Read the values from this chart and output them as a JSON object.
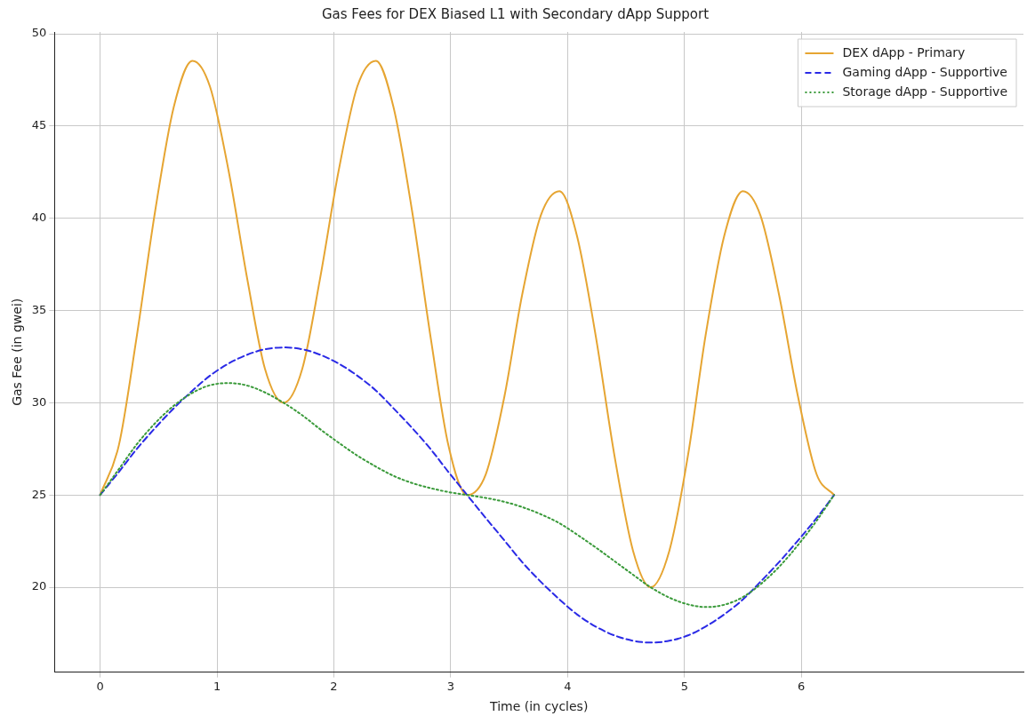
{
  "chart_data": {
    "type": "line",
    "title": "Gas Fees for DEX Biased L1 with Secondary dApp Support",
    "xlabel": "Time (in cycles)",
    "ylabel": "Gas Fee (in gwei)",
    "x": [
      0,
      0.16,
      0.31,
      0.47,
      0.63,
      0.79,
      0.94,
      1.1,
      1.26,
      1.41,
      1.57,
      1.73,
      1.88,
      2.04,
      2.2,
      2.36,
      2.51,
      2.67,
      2.83,
      2.98,
      3.14,
      3.3,
      3.46,
      3.61,
      3.77,
      3.93,
      4.08,
      4.24,
      4.4,
      4.56,
      4.71,
      4.87,
      5.03,
      5.18,
      5.34,
      5.5,
      5.65,
      5.81,
      5.97,
      6.13,
      6.28
    ],
    "series": [
      {
        "name": "DEX dApp - Primary",
        "color": "#e6a532",
        "line_style": "solid",
        "values": [
          25,
          27.69,
          33.46,
          40.36,
          46.03,
          48.54,
          47.14,
          42.55,
          36.67,
          31.85,
          30,
          31.85,
          36.67,
          42.55,
          47.14,
          48.54,
          46.03,
          40.36,
          33.46,
          27.69,
          25,
          26.13,
          30.37,
          35.82,
          40.15,
          41.47,
          39.05,
          33.64,
          27.16,
          21.97,
          20,
          21.97,
          27.16,
          33.64,
          39.05,
          41.47,
          40.15,
          35.82,
          30.37,
          26.13,
          25
        ]
      },
      {
        "name": "Gaming dApp - Supportive",
        "color": "#2a2ae6",
        "line_style": "dashed",
        "values": [
          25,
          26.25,
          27.47,
          28.63,
          29.7,
          30.66,
          31.47,
          32.13,
          32.61,
          32.9,
          33,
          32.9,
          32.61,
          32.13,
          31.47,
          30.66,
          29.7,
          28.63,
          27.47,
          26.25,
          25,
          23.75,
          22.53,
          21.37,
          20.3,
          19.34,
          18.53,
          17.87,
          17.39,
          17.1,
          17,
          17.1,
          17.39,
          17.87,
          18.53,
          19.34,
          20.3,
          21.37,
          22.53,
          23.75,
          25
        ]
      },
      {
        "name": "Storage dApp - Supportive",
        "color": "#3a9a3a",
        "line_style": "dotted",
        "values": [
          25,
          26.4,
          27.72,
          28.89,
          29.84,
          30.54,
          30.95,
          31.07,
          30.93,
          30.56,
          30,
          29.32,
          28.58,
          27.84,
          27.14,
          26.54,
          26.04,
          25.65,
          25.37,
          25.16,
          25,
          24.84,
          24.63,
          24.35,
          23.96,
          23.47,
          22.86,
          22.16,
          21.42,
          20.68,
          20,
          19.44,
          19.07,
          18.93,
          19.05,
          19.47,
          20.16,
          21.11,
          22.28,
          23.6,
          25
        ]
      }
    ],
    "xlim": [
      -0.39,
      7.9
    ],
    "xticks": [
      0,
      1,
      2,
      3,
      4,
      5,
      6
    ],
    "ylim": [
      15.4,
      50.1
    ],
    "yticks": [
      20,
      25,
      30,
      35,
      40,
      45,
      50
    ],
    "grid": true,
    "legend": "top right",
    "marker": "none"
  }
}
